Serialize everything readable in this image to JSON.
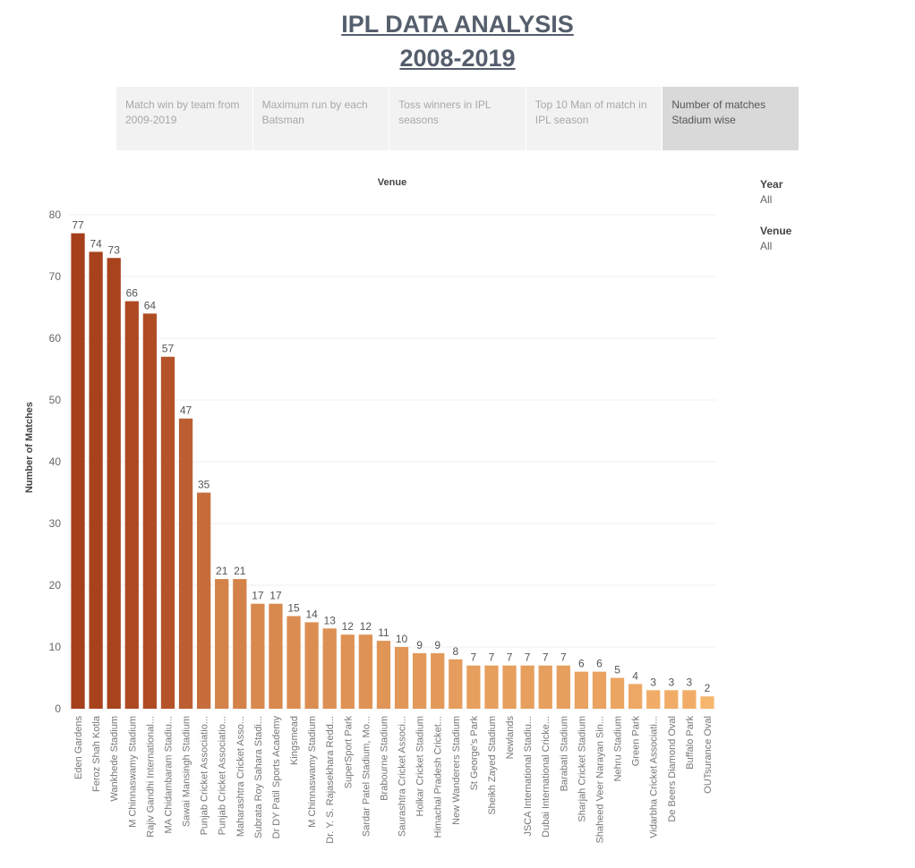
{
  "header": {
    "title": [
      "IPL DATA ANALYSIS",
      "2008-2019"
    ]
  },
  "tabs": [
    {
      "label": "Match win by team from 2009-2019",
      "selected": false
    },
    {
      "label": "Maximum run by each Batsman",
      "selected": false
    },
    {
      "label": "Toss winners in IPL seasons",
      "selected": false
    },
    {
      "label": "Top 10  Man of match in IPL season",
      "selected": false
    },
    {
      "label": "Number of matches Stadium wise",
      "selected": true
    }
  ],
  "filters": [
    {
      "label": "Year",
      "value": "All"
    },
    {
      "label": "Venue",
      "value": "All"
    }
  ],
  "chart_data": {
    "type": "bar",
    "title": "Venue",
    "y_label": "Number of Matches",
    "categories": [
      "Eden Gardens",
      "Feroz Shah Kotla",
      "Wankhede Stadium",
      "M Chinnaswamy Stadium",
      "Rajiv Gandhi International...",
      "MA Chidambaram Stadiu...",
      "Sawai Mansingh Stadium",
      "Punjab Cricket Associatio...",
      "Punjab Cricket Associatio...",
      "Maharashtra Cricket Asso...",
      "Subrata Roy Sahara Stadi...",
      "Dr DY Patil Sports Academy",
      "Kingsmead",
      "M Chinnaswamy Stadium",
      "Dr. Y. S. Rajasekhara Redd...",
      "SuperSport Park",
      "Sardar Patel Stadium, Mo...",
      "Brabourne Stadium",
      "Saurashtra Cricket Associ...",
      "Holkar Cricket Stadium",
      "Himachal Pradesh Cricket...",
      "New Wanderers Stadium",
      "St George's Park",
      "Sheikh Zayed Stadium",
      "Newlands",
      "JSCA International Stadiu...",
      "Dubai International Cricke...",
      "Barabati Stadium",
      "Sharjah Cricket Stadium",
      "Shaheed Veer Narayan Sin...",
      "Nehru Stadium",
      "Green Park",
      "Vidarbha Cricket Associati...",
      "De Beers Diamond Oval",
      "Buffalo Park",
      "OUTsurance Oval"
    ],
    "values": [
      77,
      74,
      73,
      66,
      64,
      57,
      47,
      35,
      21,
      21,
      17,
      17,
      15,
      14,
      13,
      12,
      12,
      11,
      10,
      9,
      9,
      8,
      7,
      7,
      7,
      7,
      7,
      7,
      6,
      6,
      5,
      4,
      3,
      3,
      3,
      2
    ],
    "color_range": [
      "#f7b66e",
      "#a63f1b"
    ],
    "ylim": [
      0,
      80
    ],
    "yticks": [
      0,
      10,
      20,
      30,
      40,
      50,
      60,
      70,
      80
    ],
    "grid": true
  }
}
